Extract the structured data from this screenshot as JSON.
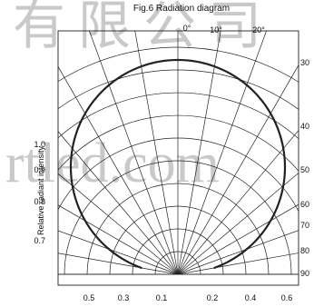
{
  "watermark": {
    "top": "有限公司",
    "middle": "rtled.com"
  },
  "chart_data": {
    "type": "polar",
    "title": "Fig.6 Radiation diagram",
    "ylabel": "Relative radiant intensity",
    "top_angle_labels": [
      "0°",
      "10°",
      "20°"
    ],
    "side_angle_labels": [
      "30",
      "40",
      "50",
      "60",
      "70",
      "80",
      "90"
    ],
    "left_intensity_labels": [
      "1.0",
      "0.9",
      "0.8",
      "0.7"
    ],
    "bottom_tick_labels": [
      "0.5",
      "0.3",
      "0.1",
      "0.2",
      "0.4",
      "0.6"
    ],
    "ring_values": [
      0.1,
      0.2,
      0.3,
      0.4,
      0.5,
      0.6,
      0.7,
      0.8,
      0.9,
      1.0
    ],
    "spoke_angles_deg": [
      -90,
      -80,
      -70,
      -60,
      -50,
      -40,
      -30,
      -20,
      -10,
      0,
      10,
      20,
      30,
      40,
      50,
      60,
      70,
      80,
      90
    ],
    "curve": {
      "model": "cos",
      "from_deg": -80,
      "to_deg": 80,
      "peak": 1.0
    }
  }
}
